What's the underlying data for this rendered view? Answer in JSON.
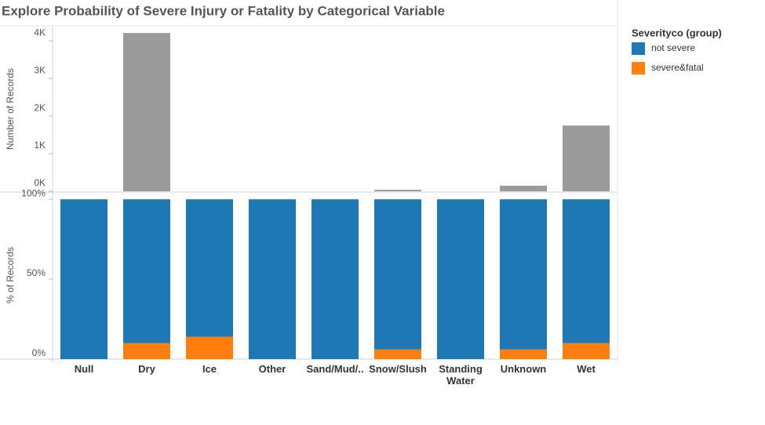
{
  "chart_data": [
    {
      "type": "bar",
      "title": "Explore Probability of Severe Injury or Fatality by Categorical Variable",
      "y_label": "Number of Records",
      "values": [
        0,
        4210,
        0,
        0,
        0,
        40,
        0,
        150,
        1750
      ],
      "color": "#9b9b9b",
      "ylim": [
        0,
        4400
      ],
      "yticks": [
        {
          "value": 0,
          "label": "0K"
        },
        {
          "value": 1000,
          "label": "1K"
        },
        {
          "value": 2000,
          "label": "2K"
        },
        {
          "value": 3000,
          "label": "3K"
        },
        {
          "value": 4000,
          "label": "4K"
        }
      ]
    },
    {
      "type": "stacked_bar",
      "y_label": "% of Records",
      "legend_title": "Severityco (group)",
      "categories": [
        "Null",
        "Dry",
        "Ice",
        "Other",
        "Sand/Mud/..",
        "Snow/Slush",
        "Standing Water",
        "Unknown",
        "Wet"
      ],
      "series": [
        {
          "name": "not severe",
          "color": "#1f77b4",
          "values": [
            100,
            90,
            86,
            100,
            100,
            94,
            100,
            94,
            90
          ]
        },
        {
          "name": "severe&fatal",
          "color": "#ff7f0e",
          "values": [
            0,
            10,
            14,
            0,
            0,
            6,
            0,
            6,
            10
          ]
        }
      ],
      "ylim": [
        0,
        104
      ],
      "yticks": [
        {
          "value": 0,
          "label": "0%"
        },
        {
          "value": 50,
          "label": "50%"
        },
        {
          "value": 100,
          "label": "100%"
        }
      ]
    }
  ]
}
